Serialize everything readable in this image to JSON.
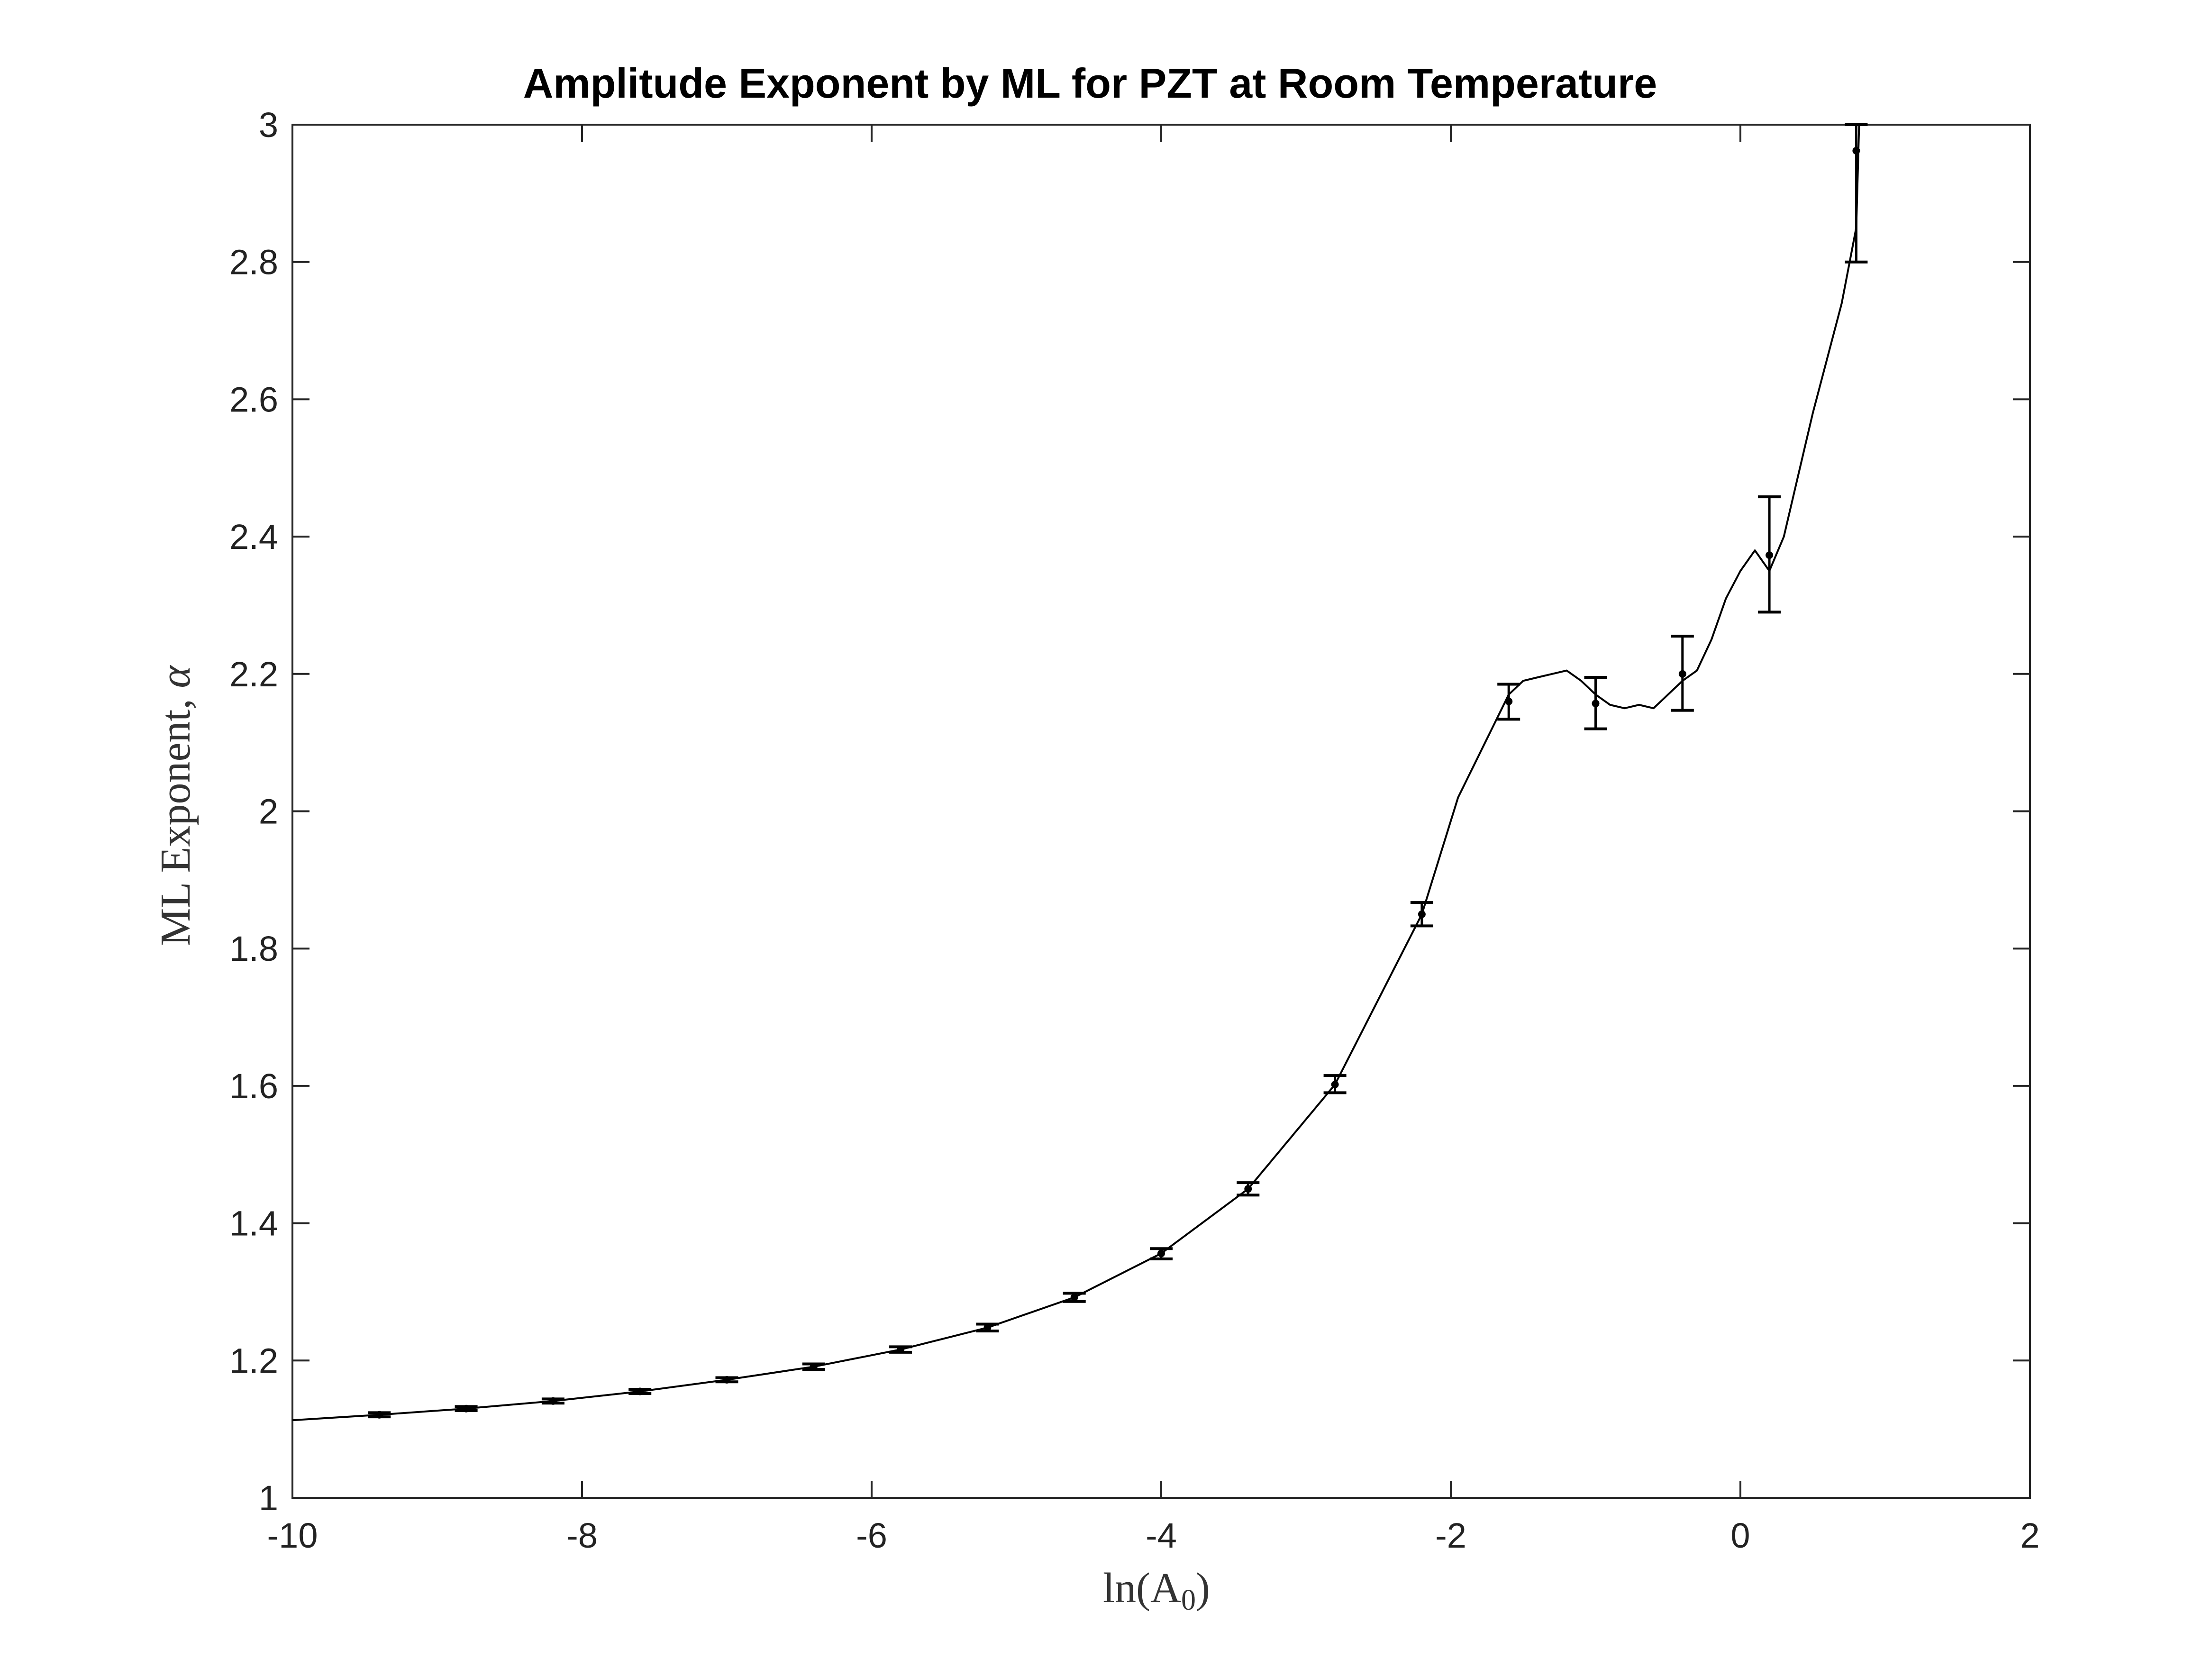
{
  "chart_data": {
    "type": "line",
    "title": "Amplitude Exponent by ML for PZT at Room Temperature",
    "xlabel": {
      "main": "ln(A",
      "sub": "0",
      "close": ")"
    },
    "ylabel": {
      "main": "ML Exponent, ",
      "symbol": "α"
    },
    "xlim": [
      -10,
      2
    ],
    "ylim": [
      1,
      3
    ],
    "xticks": [
      -10,
      -8,
      -6,
      -4,
      -2,
      0,
      2
    ],
    "yticks": [
      1,
      1.2,
      1.4,
      1.6,
      1.8,
      2,
      2.2,
      2.4,
      2.6,
      2.8,
      3
    ],
    "xtick_labels": [
      "-10",
      "-8",
      "-6",
      "-4",
      "-2",
      "0",
      "2"
    ],
    "ytick_labels": [
      "1",
      "1.2",
      "1.4",
      "1.6",
      "1.8",
      "2",
      "2.2",
      "2.4",
      "2.6",
      "2.8",
      "3"
    ],
    "grid": false,
    "line_color": "#000000",
    "series": [
      {
        "curve_x": [
          -10.0,
          -9.4,
          -8.8,
          -8.2,
          -7.6,
          -7.0,
          -6.4,
          -5.8,
          -5.2,
          -4.6,
          -4.0,
          -3.4,
          -2.8,
          -2.2,
          -1.95,
          -1.6,
          -1.5,
          -1.4,
          -1.3,
          -1.2,
          -1.1,
          -1.0,
          -0.9,
          -0.8,
          -0.7,
          -0.6,
          -0.5,
          -0.4,
          -0.3,
          -0.2,
          -0.1,
          0.0,
          0.1,
          0.2,
          0.3,
          0.4,
          0.5,
          0.6,
          0.7,
          0.8,
          0.82
        ],
        "curve_y": [
          1.113,
          1.121,
          1.13,
          1.141,
          1.155,
          1.172,
          1.191,
          1.216,
          1.248,
          1.292,
          1.356,
          1.45,
          1.602,
          1.85,
          2.02,
          2.17,
          2.19,
          2.195,
          2.2,
          2.205,
          2.19,
          2.17,
          2.155,
          2.15,
          2.155,
          2.15,
          2.17,
          2.19,
          2.205,
          2.25,
          2.31,
          2.35,
          2.38,
          2.35,
          2.4,
          2.49,
          2.58,
          2.66,
          2.74,
          2.85,
          3.0
        ],
        "errorbars": [
          {
            "x": -9.4,
            "y": 1.121,
            "lo": 1.118,
            "hi": 1.124
          },
          {
            "x": -8.8,
            "y": 1.13,
            "lo": 1.127,
            "hi": 1.133
          },
          {
            "x": -8.2,
            "y": 1.141,
            "lo": 1.138,
            "hi": 1.144
          },
          {
            "x": -7.6,
            "y": 1.155,
            "lo": 1.152,
            "hi": 1.158
          },
          {
            "x": -7.0,
            "y": 1.172,
            "lo": 1.169,
            "hi": 1.175
          },
          {
            "x": -6.4,
            "y": 1.191,
            "lo": 1.187,
            "hi": 1.195
          },
          {
            "x": -5.8,
            "y": 1.216,
            "lo": 1.212,
            "hi": 1.22
          },
          {
            "x": -5.2,
            "y": 1.248,
            "lo": 1.243,
            "hi": 1.253
          },
          {
            "x": -4.6,
            "y": 1.292,
            "lo": 1.286,
            "hi": 1.298
          },
          {
            "x": -4.0,
            "y": 1.356,
            "lo": 1.348,
            "hi": 1.363
          },
          {
            "x": -3.4,
            "y": 1.45,
            "lo": 1.441,
            "hi": 1.459
          },
          {
            "x": -2.8,
            "y": 1.602,
            "lo": 1.59,
            "hi": 1.615
          },
          {
            "x": -2.2,
            "y": 1.85,
            "lo": 1.833,
            "hi": 1.867
          },
          {
            "x": -1.6,
            "y": 2.16,
            "lo": 2.134,
            "hi": 2.185
          },
          {
            "x": -1.0,
            "y": 2.157,
            "lo": 2.12,
            "hi": 2.195
          },
          {
            "x": -0.4,
            "y": 2.2,
            "lo": 2.147,
            "hi": 2.255
          },
          {
            "x": 0.2,
            "y": 2.373,
            "lo": 2.29,
            "hi": 2.458
          },
          {
            "x": 0.8,
            "y": 2.962,
            "lo": 2.8,
            "hi": 3.0
          }
        ]
      }
    ]
  }
}
